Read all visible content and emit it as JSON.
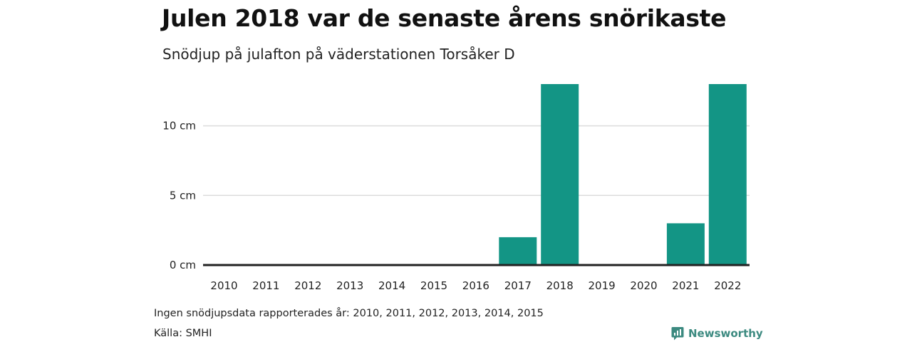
{
  "header": {
    "title": "Julen 2018 var de senaste årens snörikaste",
    "subtitle": "Snödjup på julafton på väderstationen Torsåker D"
  },
  "footer": {
    "note": "Ingen snödjupsdata rapporterades år: 2010, 2011, 2012, 2013, 2014, 2015",
    "source": "Källa: SMHI",
    "brand": "Newsworthy",
    "brand_icon": "newsworthy-logo-icon"
  },
  "colors": {
    "bar": "#139585",
    "grid": "#dcdcdc",
    "axis": "#222222",
    "brand": "#3c8a80"
  },
  "chart_data": {
    "type": "bar",
    "title": "Julen 2018 var de senaste årens snörikaste",
    "subtitle": "Snödjup på julafton på väderstationen Torsåker D",
    "xlabel": "",
    "ylabel": "",
    "categories": [
      "2010",
      "2011",
      "2012",
      "2013",
      "2014",
      "2015",
      "2016",
      "2017",
      "2018",
      "2019",
      "2020",
      "2021",
      "2022"
    ],
    "values": [
      null,
      null,
      null,
      null,
      null,
      null,
      0,
      2,
      13,
      0,
      0,
      3,
      13
    ],
    "ylim": [
      0,
      13
    ],
    "yticks": [
      0,
      5,
      10
    ],
    "ytick_labels": [
      "0 cm",
      "5 cm",
      "10 cm"
    ],
    "grid": true,
    "legend": "none"
  }
}
